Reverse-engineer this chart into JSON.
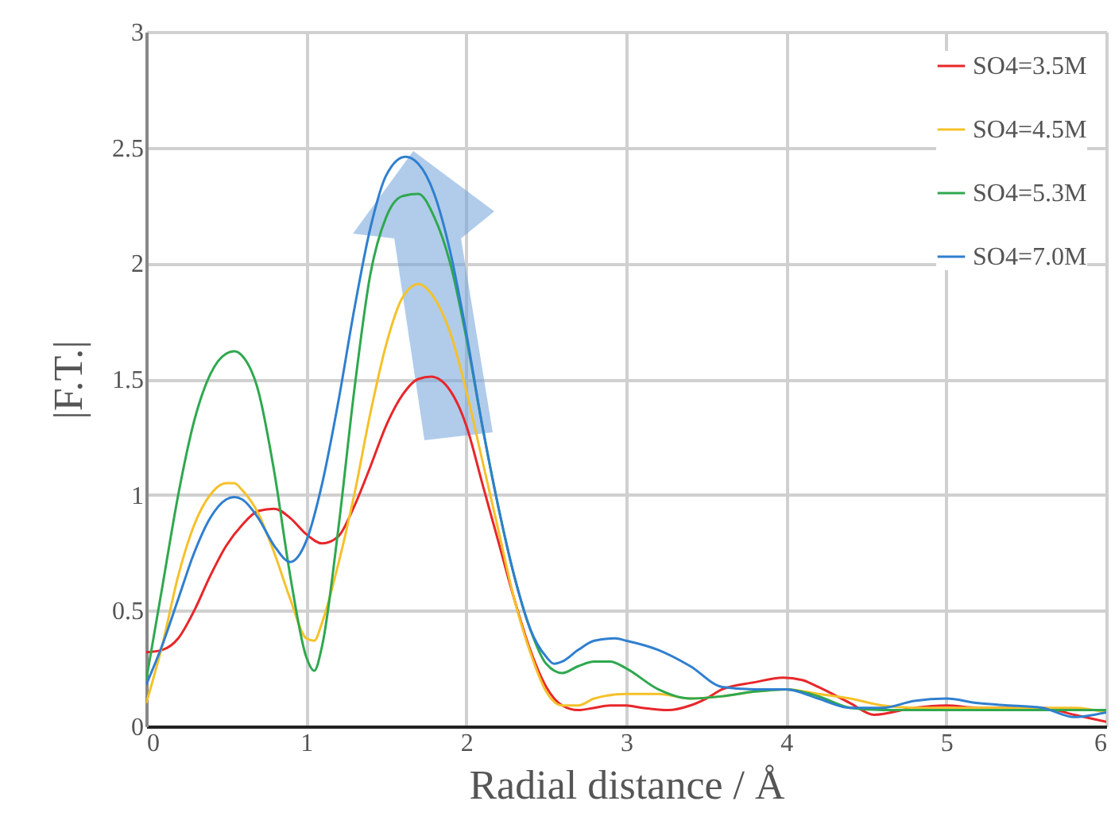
{
  "chart_data": {
    "type": "line",
    "xlabel": "Radial distance / Å",
    "ylabel": "|F.T.|",
    "xlim": [
      0,
      6
    ],
    "ylim": [
      0,
      3
    ],
    "xticks": [
      0,
      1,
      2,
      3,
      4,
      5,
      6
    ],
    "yticks": [
      0,
      0.5,
      1,
      1.5,
      2,
      2.5,
      3
    ],
    "grid": true,
    "legend": "top right",
    "series": [
      {
        "name": "SO4=3.5M",
        "color": "#e8262a",
        "x": [
          0,
          0.1,
          0.2,
          0.3,
          0.4,
          0.5,
          0.6,
          0.7,
          0.8,
          0.9,
          1.0,
          1.1,
          1.2,
          1.3,
          1.4,
          1.5,
          1.6,
          1.7,
          1.78,
          1.9,
          2.0,
          2.1,
          2.2,
          2.3,
          2.4,
          2.5,
          2.6,
          2.7,
          2.8,
          2.9,
          3.0,
          3.1,
          3.26,
          3.4,
          3.5,
          3.6,
          3.8,
          3.98,
          4.1,
          4.2,
          4.4,
          4.55,
          4.8,
          5.0,
          5.2,
          5.4,
          5.6,
          5.8,
          6.0
        ],
        "values": [
          0.32,
          0.33,
          0.38,
          0.5,
          0.65,
          0.78,
          0.87,
          0.93,
          0.94,
          0.9,
          0.83,
          0.79,
          0.82,
          0.95,
          1.12,
          1.3,
          1.43,
          1.5,
          1.51,
          1.45,
          1.3,
          1.05,
          0.8,
          0.55,
          0.33,
          0.17,
          0.09,
          0.07,
          0.08,
          0.09,
          0.09,
          0.08,
          0.07,
          0.09,
          0.12,
          0.16,
          0.19,
          0.21,
          0.2,
          0.17,
          0.1,
          0.05,
          0.08,
          0.09,
          0.08,
          0.08,
          0.08,
          0.05,
          0.02
        ]
      },
      {
        "name": "SO4=4.5M",
        "color": "#f5c12a",
        "x": [
          0,
          0.1,
          0.2,
          0.3,
          0.4,
          0.5,
          0.55,
          0.6,
          0.7,
          0.8,
          0.9,
          1.0,
          1.05,
          1.1,
          1.2,
          1.3,
          1.4,
          1.5,
          1.6,
          1.7,
          1.8,
          1.9,
          2.0,
          2.1,
          2.2,
          2.3,
          2.4,
          2.5,
          2.6,
          2.7,
          2.8,
          3.0,
          3.2,
          3.4,
          3.6,
          3.8,
          4.0,
          4.2,
          4.4,
          4.6,
          4.8,
          5.0,
          5.4,
          5.8,
          6.0
        ],
        "values": [
          0.1,
          0.35,
          0.65,
          0.87,
          1.0,
          1.05,
          1.05,
          1.02,
          0.92,
          0.75,
          0.55,
          0.38,
          0.37,
          0.45,
          0.7,
          1.0,
          1.35,
          1.65,
          1.85,
          1.91,
          1.85,
          1.7,
          1.45,
          1.15,
          0.85,
          0.55,
          0.32,
          0.15,
          0.09,
          0.09,
          0.12,
          0.14,
          0.14,
          0.12,
          0.13,
          0.15,
          0.16,
          0.14,
          0.12,
          0.09,
          0.08,
          0.08,
          0.08,
          0.08,
          0.06
        ]
      },
      {
        "name": "SO4=5.3M",
        "color": "#2fa84f",
        "x": [
          0,
          0.1,
          0.2,
          0.3,
          0.4,
          0.5,
          0.55,
          0.6,
          0.7,
          0.8,
          0.9,
          1.0,
          1.05,
          1.1,
          1.2,
          1.3,
          1.4,
          1.5,
          1.6,
          1.7,
          1.8,
          1.9,
          2.0,
          2.1,
          2.2,
          2.3,
          2.4,
          2.5,
          2.6,
          2.7,
          2.8,
          2.9,
          3.0,
          3.2,
          3.4,
          3.6,
          3.8,
          4.0,
          4.2,
          4.4,
          4.6,
          4.8,
          5.0,
          5.4,
          5.8,
          6.0
        ],
        "values": [
          0.2,
          0.6,
          1.0,
          1.32,
          1.52,
          1.61,
          1.62,
          1.6,
          1.45,
          1.1,
          0.65,
          0.3,
          0.24,
          0.35,
          0.85,
          1.45,
          1.95,
          2.2,
          2.29,
          2.3,
          2.2,
          2.0,
          1.68,
          1.3,
          0.95,
          0.65,
          0.42,
          0.27,
          0.23,
          0.26,
          0.28,
          0.28,
          0.25,
          0.16,
          0.12,
          0.13,
          0.15,
          0.16,
          0.13,
          0.08,
          0.07,
          0.07,
          0.07,
          0.07,
          0.07,
          0.07
        ]
      },
      {
        "name": "SO4=7.0M",
        "color": "#2f7fcf",
        "x": [
          0,
          0.1,
          0.2,
          0.3,
          0.4,
          0.5,
          0.55,
          0.6,
          0.7,
          0.8,
          0.9,
          1.0,
          1.1,
          1.2,
          1.3,
          1.4,
          1.5,
          1.62,
          1.7,
          1.8,
          1.9,
          2.0,
          2.1,
          2.2,
          2.3,
          2.4,
          2.5,
          2.55,
          2.6,
          2.7,
          2.8,
          2.93,
          3.0,
          3.2,
          3.4,
          3.6,
          3.8,
          4.0,
          4.2,
          4.4,
          4.6,
          4.8,
          5.0,
          5.2,
          5.4,
          5.6,
          5.8,
          6.0
        ],
        "values": [
          0.18,
          0.35,
          0.55,
          0.75,
          0.9,
          0.98,
          0.99,
          0.98,
          0.9,
          0.78,
          0.71,
          0.8,
          1.05,
          1.4,
          1.8,
          2.15,
          2.38,
          2.46,
          2.43,
          2.3,
          2.05,
          1.7,
          1.3,
          0.95,
          0.65,
          0.42,
          0.3,
          0.27,
          0.28,
          0.33,
          0.37,
          0.38,
          0.37,
          0.33,
          0.26,
          0.17,
          0.16,
          0.16,
          0.12,
          0.08,
          0.08,
          0.11,
          0.12,
          0.1,
          0.09,
          0.08,
          0.04,
          0.06
        ]
      }
    ]
  }
}
